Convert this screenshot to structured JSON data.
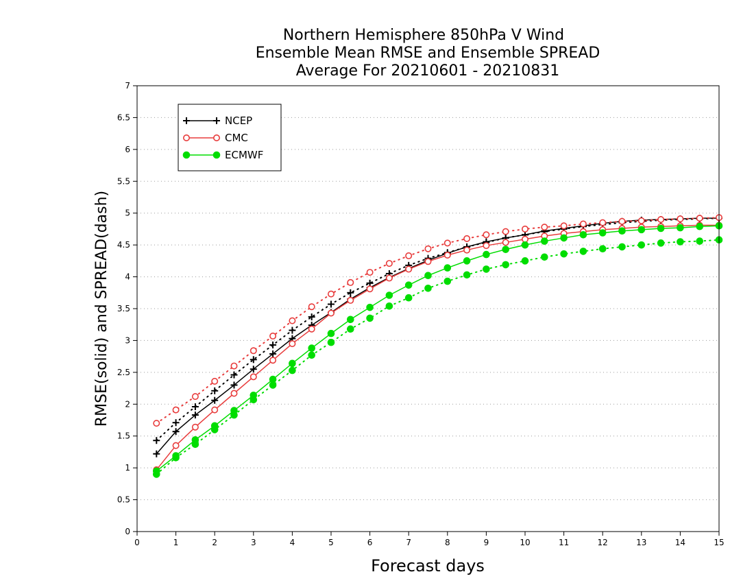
{
  "chart_data": {
    "type": "line",
    "title": [
      "Northern Hemisphere 850hPa V Wind",
      "Ensemble Mean RMSE and Ensemble SPREAD",
      "Average For 20210601 - 20210831"
    ],
    "xlabel": "Forecast days",
    "ylabel": "RMSE(solid) and SPREAD(dash)",
    "xlim": [
      0,
      15
    ],
    "ylim": [
      0,
      7
    ],
    "xticks": [
      "0",
      "1",
      "2",
      "3",
      "4",
      "5",
      "6",
      "7",
      "8",
      "9",
      "10",
      "11",
      "12",
      "13",
      "14",
      "15"
    ],
    "yticks": [
      "0",
      "0.5",
      "1",
      "1.5",
      "2",
      "2.5",
      "3",
      "3.5",
      "4",
      "4.5",
      "5",
      "5.5",
      "6",
      "6.5",
      "7"
    ],
    "grid": true,
    "legend_position": "top-left",
    "x": [
      0.5,
      1,
      1.5,
      2,
      2.5,
      3,
      3.5,
      4,
      4.5,
      5,
      5.5,
      6,
      6.5,
      7,
      7.5,
      8,
      8.5,
      9,
      9.5,
      10,
      10.5,
      11,
      11.5,
      12,
      12.5,
      13,
      13.5,
      14,
      14.5,
      15
    ],
    "series": [
      {
        "name": "NCEP",
        "color": "#000000",
        "marker": "plus",
        "rmse": [
          1.22,
          1.57,
          1.83,
          2.06,
          2.3,
          2.55,
          2.79,
          3.03,
          3.24,
          3.44,
          3.65,
          3.83,
          3.99,
          4.13,
          4.26,
          4.37,
          4.47,
          4.55,
          4.61,
          4.66,
          4.72,
          4.76,
          4.8,
          4.84,
          4.87,
          4.89,
          4.9,
          4.91,
          4.92,
          4.92
        ],
        "spread": [
          1.43,
          1.71,
          1.96,
          2.21,
          2.46,
          2.7,
          2.93,
          3.16,
          3.37,
          3.57,
          3.75,
          3.9,
          4.05,
          4.18,
          4.29,
          4.38,
          4.47,
          4.54,
          4.61,
          4.66,
          4.71,
          4.75,
          4.79,
          4.82,
          4.85,
          4.87,
          4.89,
          4.9,
          4.91,
          4.92
        ]
      },
      {
        "name": "CMC",
        "color": "#e83b3b",
        "marker": "open-circle",
        "rmse": [
          0.97,
          1.35,
          1.64,
          1.91,
          2.17,
          2.43,
          2.69,
          2.95,
          3.18,
          3.43,
          3.63,
          3.81,
          3.98,
          4.12,
          4.24,
          4.34,
          4.42,
          4.49,
          4.54,
          4.59,
          4.64,
          4.68,
          4.71,
          4.74,
          4.76,
          4.78,
          4.79,
          4.8,
          4.81,
          4.81
        ],
        "spread": [
          1.7,
          1.91,
          2.12,
          2.36,
          2.6,
          2.84,
          3.07,
          3.31,
          3.53,
          3.73,
          3.91,
          4.07,
          4.21,
          4.33,
          4.44,
          4.53,
          4.6,
          4.66,
          4.71,
          4.75,
          4.78,
          4.8,
          4.83,
          4.85,
          4.87,
          4.88,
          4.9,
          4.91,
          4.92,
          4.93
        ]
      },
      {
        "name": "ECMWF",
        "color": "#00dd00",
        "marker": "filled-circle",
        "rmse": [
          0.95,
          1.19,
          1.44,
          1.66,
          1.9,
          2.14,
          2.39,
          2.64,
          2.88,
          3.11,
          3.33,
          3.52,
          3.71,
          3.87,
          4.02,
          4.14,
          4.25,
          4.35,
          4.43,
          4.5,
          4.56,
          4.61,
          4.66,
          4.69,
          4.72,
          4.74,
          4.76,
          4.77,
          4.79,
          4.8
        ],
        "spread": [
          0.9,
          1.16,
          1.37,
          1.6,
          1.83,
          2.07,
          2.3,
          2.53,
          2.77,
          2.97,
          3.18,
          3.35,
          3.54,
          3.67,
          3.82,
          3.93,
          4.03,
          4.12,
          4.19,
          4.25,
          4.31,
          4.36,
          4.4,
          4.44,
          4.47,
          4.5,
          4.53,
          4.55,
          4.56,
          4.58
        ]
      }
    ]
  }
}
